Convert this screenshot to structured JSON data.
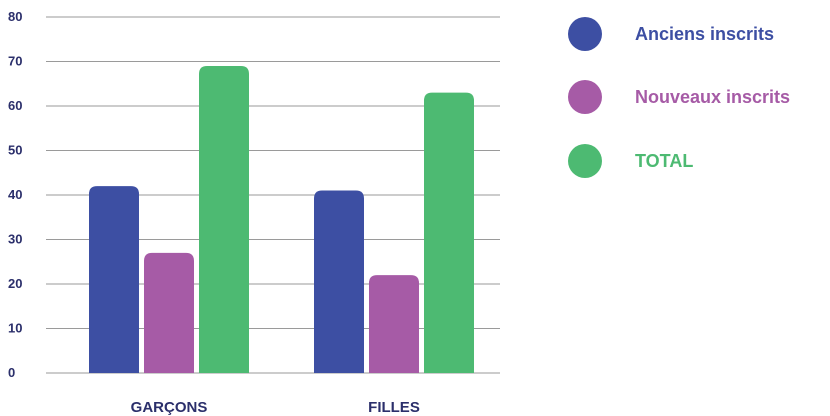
{
  "chart_data": {
    "type": "bar",
    "title": "",
    "xlabel": "",
    "ylabel": "",
    "categories": [
      "GARÇONS",
      "FILLES"
    ],
    "series": [
      {
        "name": "Anciens inscrits",
        "values": [
          42,
          41
        ],
        "color": "#3d4fa3"
      },
      {
        "name": "Nouveaux inscrits",
        "values": [
          27,
          22
        ],
        "color": "#a65ba6"
      },
      {
        "name": "TOTAL",
        "values": [
          69,
          63
        ],
        "color": "#4dba72"
      }
    ],
    "ylim": [
      0,
      80
    ],
    "yticks": [
      "0",
      "10",
      "20",
      "30",
      "40",
      "50",
      "60",
      "70",
      "80"
    ],
    "grid": true,
    "legend_position": "right",
    "colors": {
      "axis_text": "#2b2f6b",
      "grid": "#9a9a9a"
    }
  }
}
